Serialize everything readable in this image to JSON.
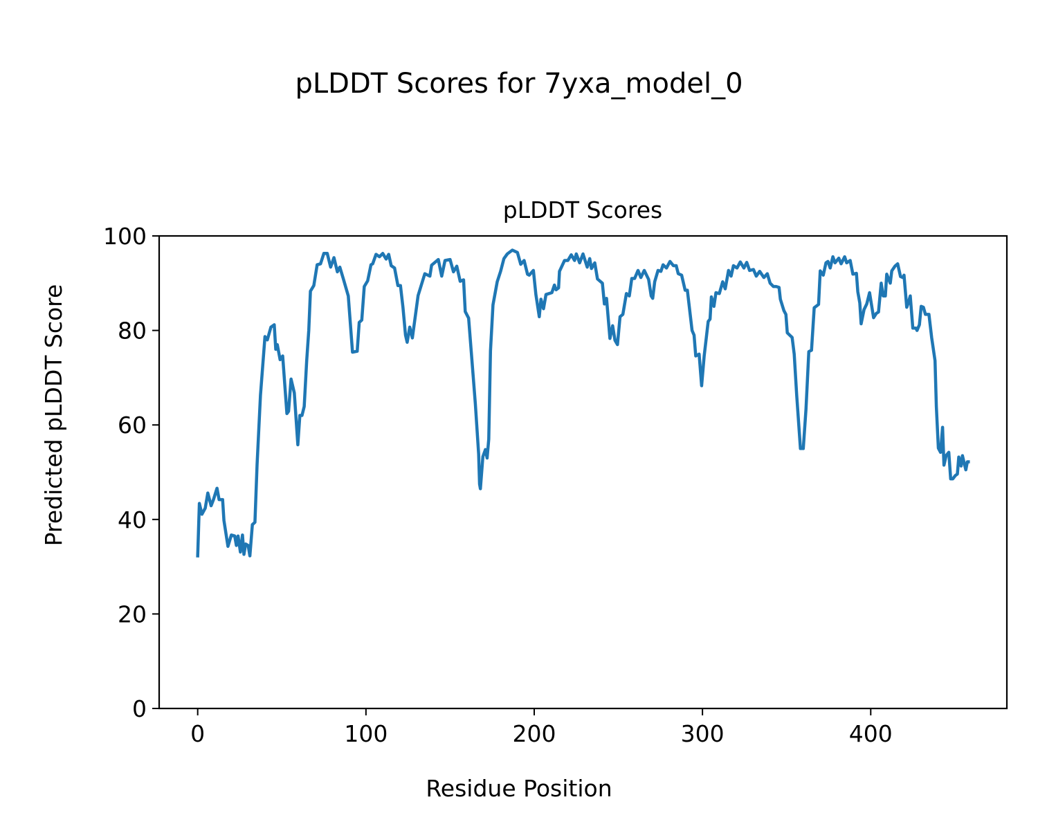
{
  "figure_title": "pLDDT Scores for 7yxa_model_0",
  "chart_data": {
    "type": "line",
    "title": "pLDDT Scores",
    "xlabel": "Residue Position",
    "ylabel": "Predicted pLDDT Score",
    "xlim": [
      -22.9,
      480.9
    ],
    "ylim": [
      0,
      100
    ],
    "xticks": [
      0,
      100,
      200,
      300,
      400
    ],
    "yticks": [
      0,
      20,
      40,
      60,
      80,
      100
    ],
    "grid": false,
    "legend": "none",
    "series": [
      {
        "name": "pLDDT",
        "color": "#1f77b4",
        "x": [
          0,
          1,
          2.5,
          4.5,
          6,
          8,
          9.4,
          11.5,
          12.7,
          14.8,
          15.6,
          18,
          20,
          22,
          23,
          24,
          25.4,
          26.6,
          27.5,
          28.5,
          30,
          31,
          32.5,
          34,
          35.3,
          37.3,
          40,
          41.4,
          43.5,
          45.5,
          46.4,
          47.3,
          49,
          50.5,
          53,
          54,
          55.5,
          57.4,
          59.5,
          60.7,
          62,
          63.3,
          64.8,
          66,
          67,
          69,
          71,
          73,
          75,
          77,
          79,
          81,
          83,
          84.5,
          86.5,
          89.5,
          92,
          94.8,
          96,
          97.5,
          99,
          101,
          103,
          104,
          106,
          108,
          110,
          112,
          113.5,
          115,
          117,
          119,
          120.5,
          122,
          123.5,
          124.5,
          126,
          127.6,
          131,
          135,
          138,
          139,
          143,
          145,
          147,
          150,
          152,
          154,
          156,
          158,
          159,
          161,
          165,
          167,
          167.5,
          168,
          169.5,
          171,
          172,
          173,
          174,
          175.5,
          178,
          180,
          182,
          184,
          187,
          190,
          192,
          194,
          196,
          197,
          199.5,
          201,
          203,
          204,
          205.5,
          207,
          210.5,
          212,
          213,
          214.5,
          215,
          218,
          220,
          222,
          224,
          225,
          227,
          229,
          231.5,
          233,
          234,
          236,
          237.6,
          240.5,
          241.7,
          243,
          245,
          246.6,
          248,
          249.5,
          251,
          252.7,
          254.8,
          256.5,
          258,
          259.7,
          261.7,
          263.4,
          265.4,
          268,
          269.5,
          270.4,
          271.6,
          273.6,
          275.3,
          276.6,
          278.6,
          280.7,
          282.7,
          284.4,
          285.6,
          287.6,
          289.7,
          291,
          293.8,
          295,
          296,
          298,
          299.5,
          301,
          303.4,
          304.5,
          305.3,
          306.8,
          308,
          310,
          312,
          313.5,
          315.5,
          317,
          318.4,
          320.5,
          322.5,
          324.6,
          326.3,
          328,
          330.3,
          332,
          334,
          336.5,
          338.5,
          340.2,
          342.2,
          343.8,
          345.5,
          346.3,
          348.4,
          349.6,
          350.4,
          353.3,
          354.5,
          356,
          358.2,
          359.9,
          361.5,
          363.2,
          364.8,
          366.4,
          369,
          370,
          371.8,
          373.4,
          374.6,
          375.9,
          377.5,
          378.8,
          381,
          382.4,
          384.5,
          385.7,
          387.8,
          389.4,
          391.5,
          392.3,
          393.5,
          394.3,
          396,
          397.6,
          399.3,
          401.7,
          403.3,
          404.6,
          406.2,
          407.4,
          408.7,
          409.5,
          411.6,
          412.5,
          414.4,
          416,
          417.7,
          419,
          419.8,
          421.4,
          422.3,
          423.5,
          425,
          426.8,
          427.5,
          428.9,
          430,
          431.3,
          432.5,
          434.6,
          436.2,
          438.2,
          439,
          440.2,
          441.5,
          442.7,
          443.5,
          444.8,
          446.4,
          447.5,
          448.8,
          450.3,
          451.5,
          452.3,
          453.7,
          454.5,
          456.5,
          457.4,
          458
        ],
        "y": [
          32.3,
          43.4,
          41.1,
          42.4,
          45.6,
          42.9,
          44.2,
          46.6,
          44.2,
          44.2,
          39.8,
          34.3,
          36.7,
          36.5,
          34.5,
          36.5,
          33.1,
          36.7,
          32.6,
          34.8,
          34.5,
          32.3,
          38.9,
          39.4,
          51.6,
          66.3,
          78.7,
          78,
          80.7,
          81.2,
          76,
          77,
          73.8,
          74.6,
          62.4,
          62.9,
          69.7,
          66.8,
          55.8,
          62,
          62,
          63.9,
          73.6,
          80,
          88.3,
          89.5,
          93.9,
          94.1,
          96.3,
          96.3,
          93.4,
          95.4,
          92.4,
          93.4,
          91,
          87.3,
          75.4,
          75.6,
          81.7,
          82.2,
          89.3,
          90.5,
          93.9,
          94.1,
          96.1,
          95.6,
          96.3,
          95.1,
          96.1,
          93.7,
          93.2,
          89.5,
          89.5,
          84.9,
          79,
          77.5,
          80.7,
          78.4,
          87.4,
          92,
          91.5,
          93.8,
          95,
          91.5,
          94.8,
          95,
          92.4,
          93.6,
          90.4,
          90.7,
          84,
          82.6,
          64.5,
          53.8,
          47.5,
          46.5,
          53.3,
          54.8,
          53,
          57,
          75.7,
          85.4,
          90.3,
          92.5,
          95.2,
          96.2,
          97,
          96.5,
          94,
          94.8,
          91.9,
          91.7,
          92.7,
          87.6,
          82.9,
          86.6,
          84.6,
          87.6,
          88,
          89.6,
          88.6,
          89,
          92.5,
          94.8,
          94.8,
          96,
          94.8,
          96.2,
          94.3,
          96.2,
          93.4,
          95.2,
          93.1,
          94.3,
          90.9,
          90,
          85.6,
          86.8,
          78.3,
          81,
          77.9,
          77,
          82.9,
          83.4,
          87.8,
          87.3,
          91,
          91,
          92.7,
          91.2,
          92.7,
          90.8,
          87.3,
          86.8,
          90.3,
          92.7,
          92.5,
          93.9,
          93.2,
          94.6,
          93.7,
          93.7,
          92,
          91.7,
          88.5,
          88.5,
          80,
          79,
          74.6,
          75,
          68.3,
          74.6,
          81.9,
          82.4,
          87.1,
          85.1,
          88,
          87.8,
          90.3,
          88.8,
          92.7,
          91.5,
          93.7,
          93.2,
          94.5,
          93.2,
          94.4,
          92.7,
          92.9,
          91.5,
          92.5,
          91.2,
          92,
          90,
          89.3,
          89.3,
          89.1,
          86.6,
          84.2,
          83.4,
          79.5,
          78.5,
          75,
          66.3,
          55,
          55,
          63.3,
          75.5,
          75.8,
          84.8,
          85.5,
          92.6,
          91.7,
          94.3,
          94.6,
          93.2,
          95.6,
          94.3,
          95.3,
          94.1,
          95.6,
          94.3,
          94.8,
          91.9,
          92.1,
          88.2,
          85.8,
          81.4,
          84.4,
          85.6,
          88,
          82.7,
          83.6,
          83.9,
          90,
          87.3,
          87.3,
          91.9,
          90,
          92.6,
          93.6,
          94.1,
          91.4,
          91.2,
          91.7,
          84.9,
          85.8,
          87.3,
          80.5,
          80.5,
          80,
          81.2,
          85.1,
          84.9,
          83.4,
          83.4,
          78.5,
          73.6,
          63.9,
          55.1,
          54.2,
          59.5,
          51.5,
          53.5,
          54.2,
          48.6,
          48.6,
          49.3,
          49.6,
          53.2,
          51.3,
          53.5,
          50.5,
          52.2,
          52.2
        ]
      }
    ]
  }
}
